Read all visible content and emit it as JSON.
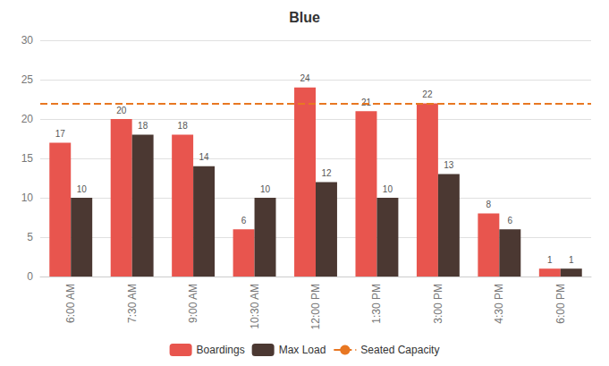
{
  "chart_data": {
    "type": "bar",
    "title": "Blue",
    "categories": [
      "6:00 AM",
      "7:30 AM",
      "9:00 AM",
      "10:30 AM",
      "12:00 PM",
      "1:30 PM",
      "3:00 PM",
      "4:30 PM",
      "6:00 PM"
    ],
    "series": [
      {
        "name": "Boardings",
        "color": "#E8554E",
        "values": [
          17,
          20,
          18,
          6,
          24,
          21,
          22,
          8,
          1
        ]
      },
      {
        "name": "Max Load",
        "color": "#4B3832",
        "values": [
          10,
          18,
          14,
          10,
          12,
          10,
          13,
          6,
          1
        ]
      }
    ],
    "hlines": [
      {
        "name": "Seated Capacity",
        "value": 22,
        "color": "#E87722",
        "line_style": "dashed"
      }
    ],
    "ylim": [
      0,
      30
    ],
    "yticks": [
      0,
      5,
      10,
      15,
      20,
      25,
      30
    ],
    "grid": true,
    "legend": "bottom",
    "data_labels": true
  }
}
